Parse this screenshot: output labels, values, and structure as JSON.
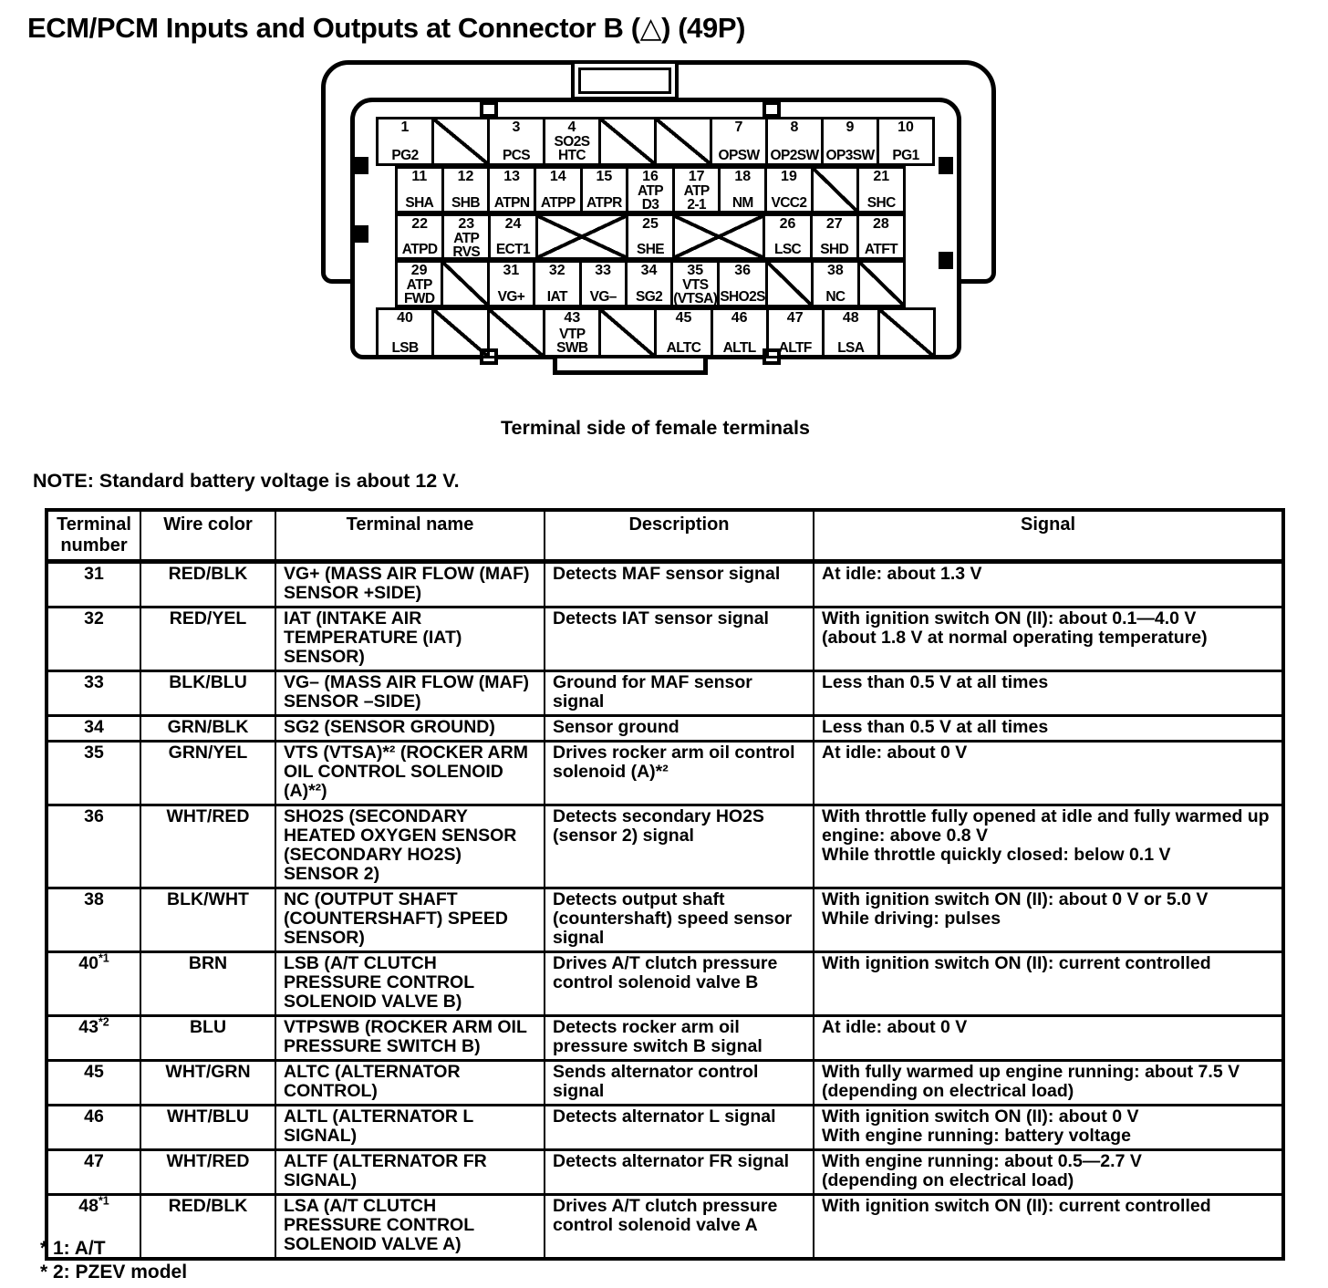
{
  "title": "ECM/PCM Inputs and Outputs at Connector B (△) (49P)",
  "caption": "Terminal side of female terminals",
  "note": "NOTE: Standard battery voltage is about 12 V.",
  "footnotes": [
    "* 1: A/T",
    "* 2: PZEV model"
  ],
  "connector": {
    "rows": [
      {
        "cells": [
          {
            "n": "1",
            "label": "PG2"
          },
          {
            "type": "diag"
          },
          {
            "n": "3",
            "label": "PCS"
          },
          {
            "n": "4",
            "label": "SO2S\nHTC"
          },
          {
            "type": "diag"
          },
          {
            "type": "diag"
          },
          {
            "n": "7",
            "label": "OPSW"
          },
          {
            "n": "8",
            "label": "OP2SW"
          },
          {
            "n": "9",
            "label": "OP3SW"
          },
          {
            "n": "10",
            "label": "PG1"
          }
        ]
      },
      {
        "cells": [
          {
            "n": "11",
            "label": "SHA"
          },
          {
            "n": "12",
            "label": "SHB"
          },
          {
            "n": "13",
            "label": "ATPN"
          },
          {
            "n": "14",
            "label": "ATPP"
          },
          {
            "n": "15",
            "label": "ATPR"
          },
          {
            "n": "16",
            "label": "ATP\nD3"
          },
          {
            "n": "17",
            "label": "ATP\n2-1"
          },
          {
            "n": "18",
            "label": "NM"
          },
          {
            "n": "19",
            "label": "VCC2"
          },
          {
            "type": "diag"
          },
          {
            "n": "21",
            "label": "SHC"
          }
        ]
      },
      {
        "cells": [
          {
            "n": "22",
            "label": "ATPD"
          },
          {
            "n": "23",
            "label": "ATP\nRVS"
          },
          {
            "n": "24",
            "label": "ECT1"
          },
          {
            "type": "x2"
          },
          {
            "n": "25",
            "label": "SHE"
          },
          {
            "type": "x2"
          },
          {
            "n": "26",
            "label": "LSC"
          },
          {
            "n": "27",
            "label": "SHD"
          },
          {
            "n": "28",
            "label": "ATFT"
          }
        ]
      },
      {
        "cells": [
          {
            "n": "29",
            "label": "ATP\nFWD"
          },
          {
            "type": "diag"
          },
          {
            "n": "31",
            "label": "VG+"
          },
          {
            "n": "32",
            "label": "IAT"
          },
          {
            "n": "33",
            "label": "VG–"
          },
          {
            "n": "34",
            "label": "SG2"
          },
          {
            "n": "35",
            "label": "VTS\n(VTSA)"
          },
          {
            "n": "36",
            "label": "SHO2S"
          },
          {
            "type": "diag"
          },
          {
            "n": "38",
            "label": "NC"
          },
          {
            "type": "diag"
          }
        ]
      },
      {
        "cells": [
          {
            "n": "40",
            "label": "LSB"
          },
          {
            "type": "diag"
          },
          {
            "type": "diag"
          },
          {
            "n": "43",
            "label": "VTP\nSWB"
          },
          {
            "type": "diag"
          },
          {
            "n": "45",
            "label": "ALTC"
          },
          {
            "n": "46",
            "label": "ALTL"
          },
          {
            "n": "47",
            "label": "ALTF"
          },
          {
            "n": "48",
            "label": "LSA"
          },
          {
            "type": "diag"
          }
        ]
      }
    ]
  },
  "table": {
    "headers": [
      "Terminal\nnumber",
      "Wire color",
      "Terminal name",
      "Description",
      "Signal"
    ],
    "rows": [
      {
        "num": "31",
        "sup": "",
        "wire": "RED/BLK",
        "name": "VG+ (MASS AIR FLOW (MAF) SENSOR +SIDE)",
        "desc": "Detects MAF sensor signal",
        "signal": "At idle: about 1.3 V"
      },
      {
        "num": "32",
        "sup": "",
        "wire": "RED/YEL",
        "name": "IAT (INTAKE AIR TEMPERATURE (IAT) SENSOR)",
        "desc": "Detects IAT sensor signal",
        "signal": "With ignition switch ON (II): about 0.1—4.0 V\n(about 1.8 V at normal operating temperature)"
      },
      {
        "num": "33",
        "sup": "",
        "wire": "BLK/BLU",
        "name": "VG– (MASS AIR FLOW (MAF) SENSOR –SIDE)",
        "desc": "Ground for MAF sensor signal",
        "signal": "Less than 0.5 V at all times"
      },
      {
        "num": "34",
        "sup": "",
        "wire": "GRN/BLK",
        "name": "SG2 (SENSOR GROUND)",
        "desc": "Sensor ground",
        "signal": "Less than 0.5 V at all times"
      },
      {
        "num": "35",
        "sup": "",
        "wire": "GRN/YEL",
        "name": "VTS (VTSA)*² (ROCKER ARM OIL CONTROL SOLENOID (A)*²)",
        "desc": "Drives rocker arm oil control solenoid (A)*²",
        "signal": "At idle: about 0 V"
      },
      {
        "num": "36",
        "sup": "",
        "wire": "WHT/RED",
        "name": "SHO2S (SECONDARY HEATED OXYGEN SENSOR (SECONDARY HO2S) SENSOR 2)",
        "desc": "Detects secondary HO2S (sensor 2) signal",
        "signal": "With throttle fully opened at idle and fully warmed up engine: above 0.8 V\nWhile throttle quickly closed: below 0.1 V"
      },
      {
        "num": "38",
        "sup": "",
        "wire": "BLK/WHT",
        "name": "NC (OUTPUT SHAFT (COUNTERSHAFT) SPEED SENSOR)",
        "desc": "Detects output shaft (countershaft) speed sensor signal",
        "signal": "With ignition switch ON (II): about 0 V or 5.0 V\nWhile driving: pulses"
      },
      {
        "num": "40",
        "sup": "*1",
        "wire": "BRN",
        "name": "LSB (A/T CLUTCH PRESSURE CONTROL SOLENOID VALVE B)",
        "desc": "Drives A/T clutch pressure control solenoid valve B",
        "signal": "With ignition switch ON (II): current controlled"
      },
      {
        "num": "43",
        "sup": "*2",
        "wire": "BLU",
        "name": "VTPSWB (ROCKER ARM OIL PRESSURE SWITCH B)",
        "desc": "Detects rocker arm oil pressure switch B signal",
        "signal": "At idle: about 0 V"
      },
      {
        "num": "45",
        "sup": "",
        "wire": "WHT/GRN",
        "name": "ALTC (ALTERNATOR CONTROL)",
        "desc": "Sends alternator control signal",
        "signal": "With fully warmed up engine running: about 7.5 V\n(depending on electrical load)"
      },
      {
        "num": "46",
        "sup": "",
        "wire": "WHT/BLU",
        "name": "ALTL (ALTERNATOR L SIGNAL)",
        "desc": "Detects alternator L signal",
        "signal": "With ignition switch ON (II): about 0 V\nWith engine running: battery voltage"
      },
      {
        "num": "47",
        "sup": "",
        "wire": "WHT/RED",
        "name": "ALTF (ALTERNATOR FR SIGNAL)",
        "desc": "Detects alternator FR signal",
        "signal": "With engine running: about 0.5—2.7 V\n(depending on electrical load)"
      },
      {
        "num": "48",
        "sup": "*1",
        "wire": "RED/BLK",
        "name": "LSA (A/T CLUTCH PRESSURE CONTROL SOLENOID VALVE A)",
        "desc": "Drives A/T clutch pressure control solenoid valve A",
        "signal": "With ignition switch ON (II): current controlled"
      }
    ]
  }
}
